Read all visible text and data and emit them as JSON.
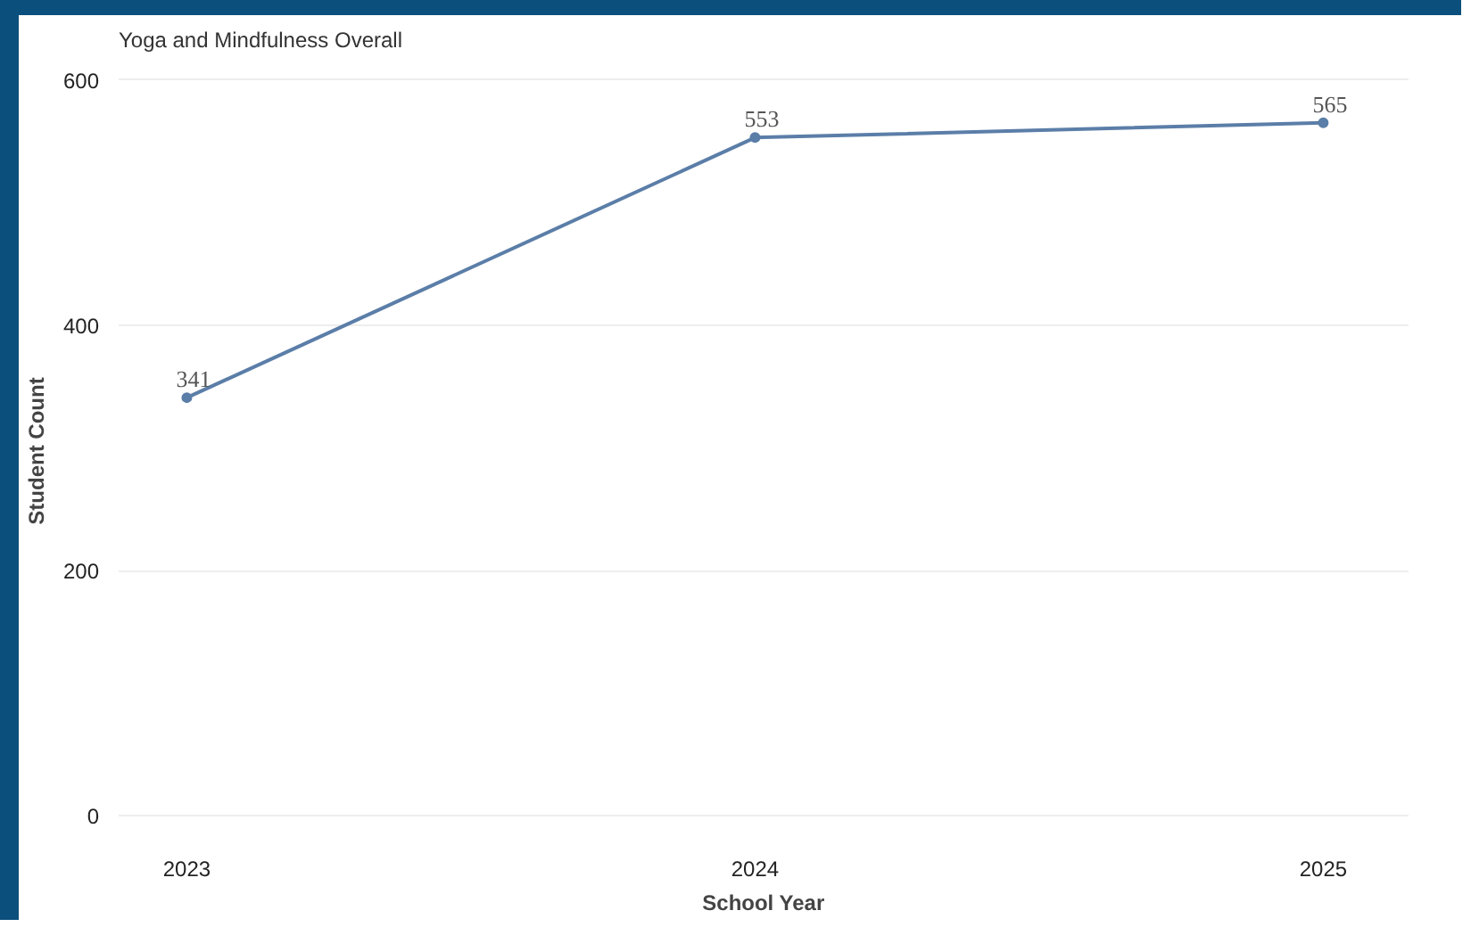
{
  "chart_data": {
    "type": "line",
    "title": "Yoga and Mindfulness Overall",
    "xlabel": "School Year",
    "ylabel": "Student Count",
    "categories": [
      "2023",
      "2024",
      "2025"
    ],
    "series": [
      {
        "color": "#5b7ea8",
        "values": [
          341,
          553,
          565
        ]
      }
    ],
    "ylim": [
      -20,
      615
    ],
    "yticks": [
      0,
      200,
      400,
      600
    ],
    "grid": "y",
    "marker": "circle",
    "data_labels": true
  }
}
